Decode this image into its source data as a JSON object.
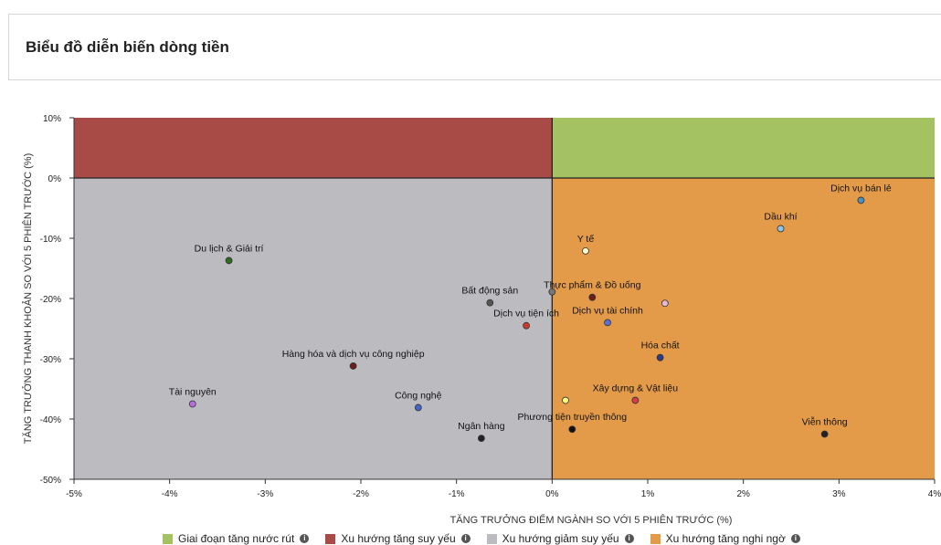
{
  "header": {
    "title": "Biểu đồ diễn biến dòng tiền"
  },
  "chart_data": {
    "type": "scatter",
    "title": "",
    "xlabel": "TĂNG TRƯỞNG ĐIỂM NGÀNH SO VỚI 5 PHIÊN TRƯỚC (%)",
    "ylabel": "TĂNG TRƯỞNG THANH KHOẢN SO VỚI 5 PHIÊN TRƯỚC (%)",
    "xlim": [
      -5,
      4
    ],
    "ylim": [
      -50,
      10
    ],
    "xticks": [
      -5,
      -4,
      -3,
      -2,
      -1,
      0,
      1,
      2,
      3,
      4
    ],
    "xtick_labels": [
      "-5%",
      "-4%",
      "-3%",
      "-2%",
      "-1%",
      "0%",
      "1%",
      "2%",
      "3%",
      "4%"
    ],
    "yticks": [
      10,
      0,
      -10,
      -20,
      -30,
      -40,
      -50
    ],
    "ytick_labels": [
      "10%",
      "0%",
      "-10%",
      "-20%",
      "-30%",
      "-40%",
      "-50%"
    ],
    "quadrants": [
      {
        "name": "Giai đoạn tăng nước rút",
        "color": "#a5c263",
        "x": [
          0,
          4
        ],
        "y": [
          0,
          10
        ]
      },
      {
        "name": "Xu hướng tăng suy yếu",
        "color": "#a84b47",
        "x": [
          -5,
          0
        ],
        "y": [
          0,
          10
        ]
      },
      {
        "name": "Xu hướng giảm suy yếu",
        "color": "#bcbcc0",
        "x": [
          -5,
          0
        ],
        "y": [
          -50,
          0
        ]
      },
      {
        "name": "Xu hướng tăng nghi ngờ",
        "color": "#e39b49",
        "x": [
          0,
          4
        ],
        "y": [
          -50,
          0
        ]
      }
    ],
    "points": [
      {
        "label": "Dịch vụ bán lẻ",
        "x": 3.23,
        "y": -3.7,
        "color": "#4a90c2"
      },
      {
        "label": "Dầu khí",
        "x": 2.39,
        "y": -8.4,
        "color": "#8ec6e8"
      },
      {
        "label": "Y tế",
        "x": 0.35,
        "y": -12.1,
        "color": "#fbfbcc"
      },
      {
        "label": "Du lịch & Giải trí",
        "x": -3.38,
        "y": -13.7,
        "color": "#2e6b1e"
      },
      {
        "label": "Bất động sản",
        "x": -0.65,
        "y": -20.7,
        "color": "#555555"
      },
      {
        "label": "",
        "x": 0.0,
        "y": -18.9,
        "color": "#777777"
      },
      {
        "label": "Thực phẩm & Đồ uống",
        "x": 0.42,
        "y": -19.8,
        "color": "#6e1d1d"
      },
      {
        "label": "",
        "x": 1.18,
        "y": -20.8,
        "color": "#e6b7d6"
      },
      {
        "label": "Dịch vụ tiện ích",
        "x": -0.27,
        "y": -24.5,
        "color": "#cc3a2e"
      },
      {
        "label": "Dịch vụ tài chính",
        "x": 0.58,
        "y": -24.0,
        "color": "#5b6fd6"
      },
      {
        "label": "Hóa chất",
        "x": 1.13,
        "y": -29.8,
        "color": "#2c3a8a"
      },
      {
        "label": "Hàng hóa và dịch vụ công nghiệp",
        "x": -2.08,
        "y": -31.2,
        "color": "#6e1d1d"
      },
      {
        "label": "Tài nguyên",
        "x": -3.76,
        "y": -37.5,
        "color": "#b76de0"
      },
      {
        "label": "Công nghệ",
        "x": -1.4,
        "y": -38.1,
        "color": "#4466cc"
      },
      {
        "label": "Xây dựng & Vật liệu",
        "x": 0.87,
        "y": -36.9,
        "color": "#d83b4a"
      },
      {
        "label": "",
        "x": 0.14,
        "y": -36.9,
        "color": "#fbfb80"
      },
      {
        "label": "Phương tiện truyền thông",
        "x": 0.21,
        "y": -41.7,
        "color": "#111111"
      },
      {
        "label": "Ngân hàng",
        "x": -0.74,
        "y": -43.2,
        "color": "#222222"
      },
      {
        "label": "Viễn thông",
        "x": 2.85,
        "y": -42.5,
        "color": "#222222"
      }
    ],
    "legend": [
      {
        "label": "Giai đoạn tăng nước rút",
        "color": "#a5c263"
      },
      {
        "label": "Xu hướng tăng suy yếu",
        "color": "#a84b47"
      },
      {
        "label": "Xu hướng giảm suy yếu",
        "color": "#bcbcc0"
      },
      {
        "label": "Xu hướng tăng nghi ngờ",
        "color": "#e39b49"
      }
    ],
    "legend_position": "bottom"
  }
}
